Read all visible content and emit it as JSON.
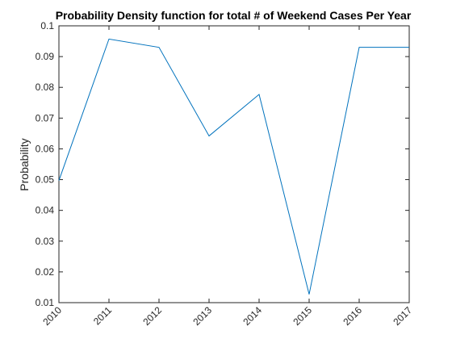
{
  "chart_data": {
    "type": "line",
    "title": "Probability Density function for total # of Weekend Cases Per Year",
    "xlabel": "",
    "ylabel": "Probability",
    "x": [
      2010,
      2011,
      2012,
      2013,
      2014,
      2015,
      2016,
      2017
    ],
    "series": [
      {
        "values": [
          0.0497,
          0.0957,
          0.093,
          0.0642,
          0.0777,
          0.0127,
          0.093,
          0.093
        ]
      }
    ],
    "xlim": [
      2010,
      2017
    ],
    "ylim": [
      0.01,
      0.1
    ],
    "xticks": [
      "2010",
      "2011",
      "2012",
      "2013",
      "2014",
      "2015",
      "2016",
      "2017"
    ],
    "yticks": [
      "0.01",
      "0.02",
      "0.03",
      "0.04",
      "0.05",
      "0.06",
      "0.07",
      "0.08",
      "0.09",
      "0.1"
    ],
    "grid": false,
    "line_color": "#0072BD"
  }
}
